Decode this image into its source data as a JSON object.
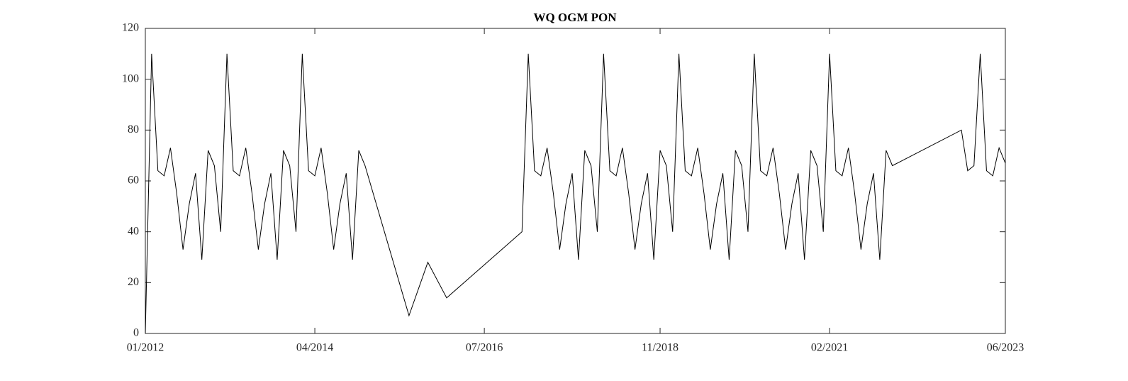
{
  "chart_data": {
    "type": "line",
    "title": "WQ OGM PON",
    "x": [
      "2012-01",
      "2012-02",
      "2012-03",
      "2012-04",
      "2012-05",
      "2012-06",
      "2012-07",
      "2012-08",
      "2012-09",
      "2012-10",
      "2012-11",
      "2012-12",
      "2013-01",
      "2013-02",
      "2013-03",
      "2013-04",
      "2013-05",
      "2013-06",
      "2013-07",
      "2013-08",
      "2013-09",
      "2013-10",
      "2013-11",
      "2013-12",
      "2014-01",
      "2014-02",
      "2014-03",
      "2014-04",
      "2014-05",
      "2014-06",
      "2014-07",
      "2014-08",
      "2014-09",
      "2014-10",
      "2014-11",
      "2014-12",
      "2015-07",
      "2015-10",
      "2016-01",
      "2017-01",
      "2017-02",
      "2017-03",
      "2017-04",
      "2017-05",
      "2017-06",
      "2017-07",
      "2017-08",
      "2017-09",
      "2017-10",
      "2017-11",
      "2017-12",
      "2018-01",
      "2018-02",
      "2018-03",
      "2018-04",
      "2018-05",
      "2018-06",
      "2018-07",
      "2018-08",
      "2018-09",
      "2018-10",
      "2018-11",
      "2018-12",
      "2019-01",
      "2019-02",
      "2019-03",
      "2019-04",
      "2019-05",
      "2019-06",
      "2019-07",
      "2019-08",
      "2019-09",
      "2019-10",
      "2019-11",
      "2019-12",
      "2020-01",
      "2020-02",
      "2020-03",
      "2020-04",
      "2020-05",
      "2020-06",
      "2020-07",
      "2020-08",
      "2020-09",
      "2020-10",
      "2020-11",
      "2020-12",
      "2021-01",
      "2021-02",
      "2021-03",
      "2021-04",
      "2021-05",
      "2021-06",
      "2021-07",
      "2021-08",
      "2021-09",
      "2021-10",
      "2021-11",
      "2021-12",
      "2022-11",
      "2022-12",
      "2023-01",
      "2023-02",
      "2023-03",
      "2023-04",
      "2023-05",
      "2023-06"
    ],
    "series": [
      {
        "color": "#000000",
        "values": [
          0,
          110,
          64,
          62,
          73,
          55,
          33,
          51,
          63,
          29,
          72,
          66,
          40,
          110,
          64,
          62,
          73,
          55,
          33,
          51,
          63,
          29,
          72,
          66,
          40,
          110,
          64,
          62,
          73,
          55,
          33,
          51,
          63,
          29,
          72,
          66,
          7,
          28,
          14,
          40,
          110,
          64,
          62,
          73,
          55,
          33,
          51,
          63,
          29,
          72,
          66,
          40,
          110,
          64,
          62,
          73,
          55,
          33,
          51,
          63,
          29,
          72,
          66,
          40,
          110,
          64,
          62,
          73,
          55,
          33,
          51,
          63,
          29,
          72,
          66,
          40,
          110,
          64,
          62,
          73,
          55,
          33,
          51,
          63,
          29,
          72,
          66,
          40,
          110,
          64,
          62,
          73,
          55,
          33,
          51,
          63,
          29,
          72,
          66,
          80,
          64,
          66,
          110,
          64,
          62,
          73,
          67
        ]
      }
    ],
    "xlim": [
      "2012-01",
      "2023-06"
    ],
    "xticks": [
      {
        "value": "2012-01",
        "label": "01/2012"
      },
      {
        "value": "2014-04",
        "label": "04/2014"
      },
      {
        "value": "2016-07",
        "label": "07/2016"
      },
      {
        "value": "2018-11",
        "label": "11/2018"
      },
      {
        "value": "2021-02",
        "label": "02/2021"
      },
      {
        "value": "2023-06",
        "label": "06/2023"
      }
    ],
    "ylim": [
      0,
      120
    ],
    "yticks": [
      0,
      20,
      40,
      60,
      80,
      100,
      120
    ]
  }
}
